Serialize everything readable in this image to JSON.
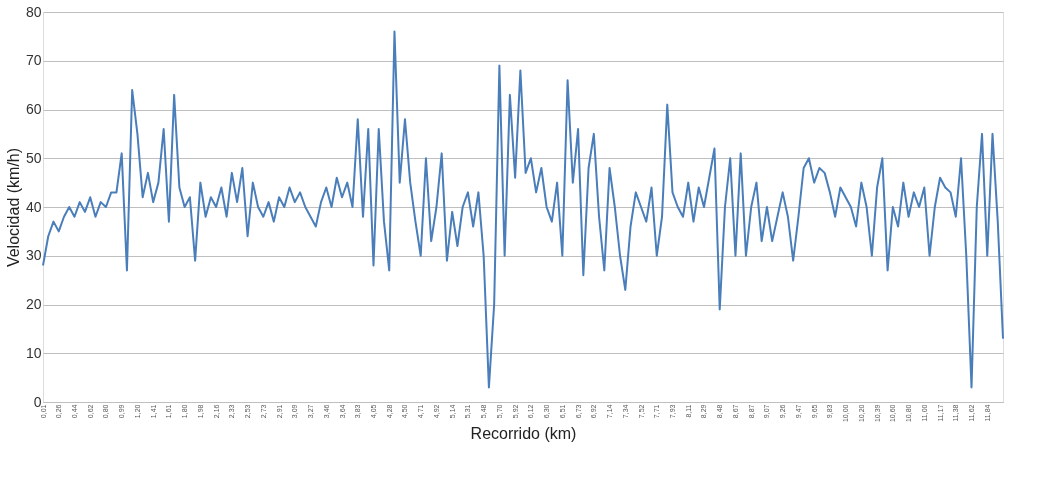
{
  "chart_data": {
    "type": "line",
    "xlabel": "Recorrido (km)",
    "ylabel": "Velocidad (km/h)",
    "categories": [
      "0,01",
      null,
      null,
      "0,26",
      null,
      null,
      "0,44",
      null,
      null,
      "0,62",
      null,
      null,
      "0,80",
      null,
      null,
      "0,99",
      null,
      null,
      "1,20",
      null,
      null,
      "1,41",
      null,
      null,
      "1,61",
      null,
      null,
      "1,80",
      null,
      null,
      "1,98",
      null,
      null,
      "2,16",
      null,
      null,
      "2,33",
      null,
      null,
      "2,53",
      null,
      null,
      "2,73",
      null,
      null,
      "2,91",
      null,
      null,
      "3,09",
      null,
      null,
      "3,27",
      null,
      null,
      "3,46",
      null,
      null,
      "3,64",
      null,
      null,
      "3,83",
      null,
      null,
      "4,05",
      null,
      null,
      "4,28",
      null,
      null,
      "4,50",
      null,
      null,
      "4,71",
      null,
      null,
      "4,92",
      null,
      null,
      "5,14",
      null,
      null,
      "5,31",
      null,
      null,
      "5,48",
      null,
      null,
      "5,70",
      null,
      null,
      "5,92",
      null,
      null,
      "6,12",
      null,
      null,
      "6,30",
      null,
      null,
      "6,51",
      null,
      null,
      "6,73",
      null,
      null,
      "6,92",
      null,
      null,
      "7,14",
      null,
      null,
      "7,34",
      null,
      null,
      "7,52",
      null,
      null,
      "7,71",
      null,
      null,
      "7,93",
      null,
      null,
      "8,11",
      null,
      null,
      "8,29",
      null,
      null,
      "8,48",
      null,
      null,
      "8,67",
      null,
      null,
      "8,87",
      null,
      null,
      "9,07",
      null,
      null,
      "9,26",
      null,
      null,
      "9,47",
      null,
      null,
      "9,65",
      null,
      null,
      "9,83",
      null,
      null,
      "10,00",
      null,
      null,
      "10,20",
      null,
      null,
      "10,39",
      null,
      null,
      "10,60",
      null,
      null,
      "10,80",
      null,
      null,
      "11,00",
      null,
      null,
      "11,17",
      null,
      null,
      "11,38",
      null,
      null,
      "11,62",
      null,
      null,
      "11,84",
      null,
      null,
      null
    ],
    "series": [
      {
        "color": "#4a7ebb",
        "values": [
          28,
          34,
          37,
          35,
          38,
          40,
          38,
          41,
          39,
          42,
          38,
          41,
          40,
          43,
          43,
          51,
          27,
          64,
          55,
          42,
          47,
          41,
          45,
          56,
          37,
          63,
          44,
          40,
          42,
          29,
          45,
          38,
          42,
          40,
          44,
          38,
          47,
          41,
          48,
          34,
          45,
          40,
          38,
          41,
          37,
          42,
          40,
          44,
          41,
          43,
          40,
          38,
          36,
          41,
          44,
          40,
          46,
          42,
          45,
          40,
          58,
          38,
          56,
          28,
          56,
          37,
          27,
          76,
          45,
          58,
          45,
          37,
          30,
          50,
          33,
          40,
          51,
          29,
          39,
          32,
          40,
          43,
          36,
          43,
          30,
          3,
          20,
          69,
          30,
          63,
          46,
          68,
          47,
          50,
          43,
          48,
          40,
          37,
          45,
          30,
          66,
          45,
          56,
          26,
          48,
          55,
          38,
          27,
          48,
          40,
          30,
          23,
          36,
          43,
          40,
          37,
          44,
          30,
          38,
          61,
          43,
          40,
          38,
          45,
          37,
          44,
          40,
          46,
          52,
          19,
          40,
          50,
          30,
          51,
          30,
          40,
          45,
          33,
          40,
          33,
          38,
          43,
          38,
          29,
          38,
          48,
          50,
          45,
          48,
          47,
          43,
          38,
          44,
          42,
          40,
          36,
          45,
          40,
          30,
          44,
          50,
          27,
          40,
          36,
          45,
          38,
          43,
          40,
          44,
          30,
          40,
          46,
          44,
          43,
          38,
          50,
          30,
          3,
          40,
          55,
          30,
          55,
          37,
          13
        ]
      }
    ],
    "ylim": [
      0,
      80
    ],
    "yticks": [
      0,
      10,
      20,
      30,
      40,
      50,
      60,
      70,
      80
    ],
    "grid": "y",
    "legend": false,
    "marker": "none",
    "line_style": "solid"
  }
}
